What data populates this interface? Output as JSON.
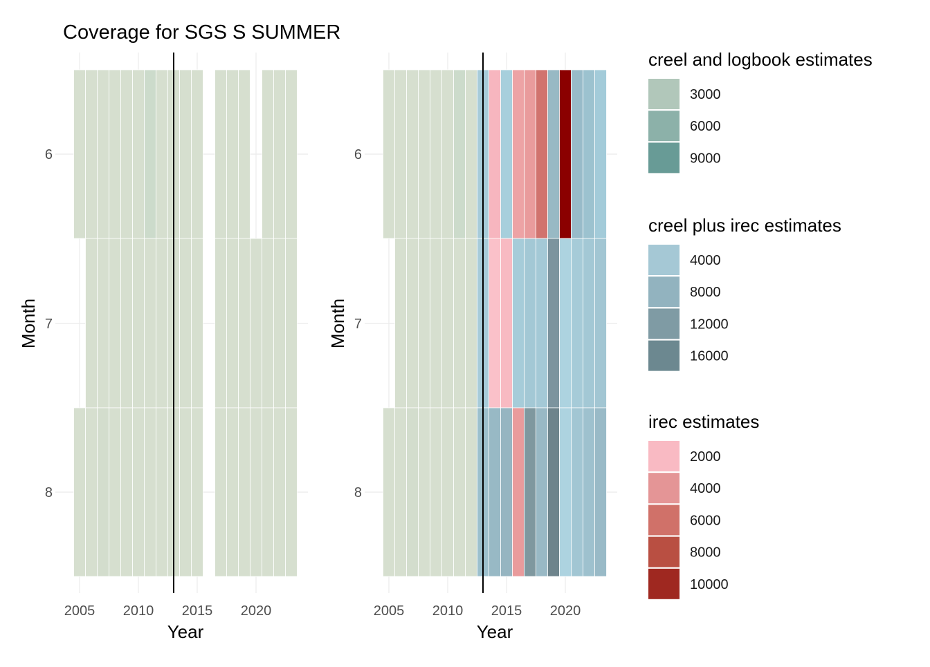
{
  "title": "Coverage for SGS S SUMMER",
  "colors": {
    "grid": "#ebebeb",
    "tile_border": "#ffffff",
    "vline": "#000000"
  },
  "chart_data": [
    {
      "type": "heatmap",
      "xlabel": "Year",
      "ylabel": "Month",
      "x_ticks": [
        2005,
        2010,
        2015,
        2020
      ],
      "y_ticks": [
        6,
        7,
        8
      ],
      "xlim": [
        2004.5,
        2023.5
      ],
      "vline": 2013,
      "tiles": [
        {
          "year": 2005,
          "month": 6,
          "color": "#d6dfcf"
        },
        {
          "year": 2006,
          "month": 6,
          "color": "#d6dfcf"
        },
        {
          "year": 2007,
          "month": 6,
          "color": "#d6dfcf"
        },
        {
          "year": 2008,
          "month": 6,
          "color": "#d6dfcf"
        },
        {
          "year": 2009,
          "month": 6,
          "color": "#d6dfcf"
        },
        {
          "year": 2010,
          "month": 6,
          "color": "#d6dfcf"
        },
        {
          "year": 2011,
          "month": 6,
          "color": "#ccdbcb"
        },
        {
          "year": 2012,
          "month": 6,
          "color": "#d6dfcf"
        },
        {
          "year": 2013,
          "month": 6,
          "color": "#d6dfcf"
        },
        {
          "year": 2014,
          "month": 6,
          "color": "#d6dfcf"
        },
        {
          "year": 2015,
          "month": 6,
          "color": "#d6dfcf"
        },
        {
          "year": 2017,
          "month": 6,
          "color": "#d6dfcf"
        },
        {
          "year": 2018,
          "month": 6,
          "color": "#d6dfcf"
        },
        {
          "year": 2019,
          "month": 6,
          "color": "#d6dfcf"
        },
        {
          "year": 2021,
          "month": 6,
          "color": "#d6dfcf"
        },
        {
          "year": 2022,
          "month": 6,
          "color": "#d6dfcf"
        },
        {
          "year": 2023,
          "month": 6,
          "color": "#d6dfcf"
        },
        {
          "year": 2006,
          "month": 7,
          "color": "#d6dfcf"
        },
        {
          "year": 2007,
          "month": 7,
          "color": "#d6dfcf"
        },
        {
          "year": 2008,
          "month": 7,
          "color": "#d6dfcf"
        },
        {
          "year": 2009,
          "month": 7,
          "color": "#d6dfcf"
        },
        {
          "year": 2010,
          "month": 7,
          "color": "#d6dfcf"
        },
        {
          "year": 2011,
          "month": 7,
          "color": "#d6dfcf"
        },
        {
          "year": 2012,
          "month": 7,
          "color": "#d6dfcf"
        },
        {
          "year": 2013,
          "month": 7,
          "color": "#d6dfcf"
        },
        {
          "year": 2014,
          "month": 7,
          "color": "#d6dfcf"
        },
        {
          "year": 2015,
          "month": 7,
          "color": "#d6dfcf"
        },
        {
          "year": 2017,
          "month": 7,
          "color": "#d6dfcf"
        },
        {
          "year": 2018,
          "month": 7,
          "color": "#d6dfcf"
        },
        {
          "year": 2019,
          "month": 7,
          "color": "#d6dfcf"
        },
        {
          "year": 2020,
          "month": 7,
          "color": "#d6dfcf"
        },
        {
          "year": 2021,
          "month": 7,
          "color": "#d6dfcf"
        },
        {
          "year": 2022,
          "month": 7,
          "color": "#d6dfcf"
        },
        {
          "year": 2023,
          "month": 7,
          "color": "#d6dfcf"
        },
        {
          "year": 2005,
          "month": 8,
          "color": "#d6dfcf"
        },
        {
          "year": 2006,
          "month": 8,
          "color": "#d6dfcf"
        },
        {
          "year": 2007,
          "month": 8,
          "color": "#d3ddcd"
        },
        {
          "year": 2008,
          "month": 8,
          "color": "#d6dfcf"
        },
        {
          "year": 2009,
          "month": 8,
          "color": "#d6dfcf"
        },
        {
          "year": 2010,
          "month": 8,
          "color": "#d6dfcf"
        },
        {
          "year": 2011,
          "month": 8,
          "color": "#d6dfcf"
        },
        {
          "year": 2012,
          "month": 8,
          "color": "#d6dfcf"
        },
        {
          "year": 2013,
          "month": 8,
          "color": "#d6dfcf"
        },
        {
          "year": 2014,
          "month": 8,
          "color": "#d6dfcf"
        },
        {
          "year": 2015,
          "month": 8,
          "color": "#d6dfcf"
        },
        {
          "year": 2017,
          "month": 8,
          "color": "#d6dfcf"
        },
        {
          "year": 2018,
          "month": 8,
          "color": "#d6dfcf"
        },
        {
          "year": 2019,
          "month": 8,
          "color": "#d6dfcf"
        },
        {
          "year": 2020,
          "month": 8,
          "color": "#d6dfcf"
        },
        {
          "year": 2021,
          "month": 8,
          "color": "#d6dfcf"
        },
        {
          "year": 2022,
          "month": 8,
          "color": "#d6dfcf"
        },
        {
          "year": 2023,
          "month": 8,
          "color": "#d6dfcf"
        }
      ]
    },
    {
      "type": "heatmap",
      "xlabel": "Year",
      "ylabel": "Month",
      "x_ticks": [
        2005,
        2010,
        2015,
        2020
      ],
      "y_ticks": [
        6,
        7,
        8
      ],
      "xlim": [
        2004.5,
        2023.5
      ],
      "vline": 2013,
      "tiles": [
        {
          "year": 2005,
          "month": 6,
          "color": "#d6dfcf"
        },
        {
          "year": 2006,
          "month": 6,
          "color": "#d6dfcf"
        },
        {
          "year": 2007,
          "month": 6,
          "color": "#d6dfcf"
        },
        {
          "year": 2008,
          "month": 6,
          "color": "#d6dfcf"
        },
        {
          "year": 2009,
          "month": 6,
          "color": "#d6dfcf"
        },
        {
          "year": 2010,
          "month": 6,
          "color": "#d6dfcf"
        },
        {
          "year": 2011,
          "month": 6,
          "color": "#ccdbcb"
        },
        {
          "year": 2012,
          "month": 6,
          "color": "#d6dfcf"
        },
        {
          "year": 2013,
          "month": 6,
          "color": "#a7cbd9"
        },
        {
          "year": 2014,
          "month": 6,
          "color": "#f7b6bf"
        },
        {
          "year": 2015,
          "month": 6,
          "color": "#a7cfdc"
        },
        {
          "year": 2016,
          "month": 6,
          "color": "#eda3a5"
        },
        {
          "year": 2017,
          "month": 6,
          "color": "#e99b9c"
        },
        {
          "year": 2018,
          "month": 6,
          "color": "#d1736e"
        },
        {
          "year": 2019,
          "month": 6,
          "color": "#98b9c4"
        },
        {
          "year": 2020,
          "month": 6,
          "color": "#8b0000"
        },
        {
          "year": 2021,
          "month": 6,
          "color": "#98bbc9"
        },
        {
          "year": 2022,
          "month": 6,
          "color": "#9cc2cf"
        },
        {
          "year": 2023,
          "month": 6,
          "color": "#a3cbd9"
        },
        {
          "year": 2006,
          "month": 7,
          "color": "#d6dfcf"
        },
        {
          "year": 2007,
          "month": 7,
          "color": "#d6dfcf"
        },
        {
          "year": 2008,
          "month": 7,
          "color": "#d6dfcf"
        },
        {
          "year": 2009,
          "month": 7,
          "color": "#d6dfcf"
        },
        {
          "year": 2010,
          "month": 7,
          "color": "#d6dfcf"
        },
        {
          "year": 2011,
          "month": 7,
          "color": "#d6dfcf"
        },
        {
          "year": 2012,
          "month": 7,
          "color": "#d6dfcf"
        },
        {
          "year": 2013,
          "month": 7,
          "color": "#a7cbd9"
        },
        {
          "year": 2014,
          "month": 7,
          "color": "#fac1c9"
        },
        {
          "year": 2015,
          "month": 7,
          "color": "#f8bac2"
        },
        {
          "year": 2016,
          "month": 7,
          "color": "#a6ccd9"
        },
        {
          "year": 2017,
          "month": 7,
          "color": "#a3c8d5"
        },
        {
          "year": 2018,
          "month": 7,
          "color": "#a4c9d6"
        },
        {
          "year": 2019,
          "month": 7,
          "color": "#7c949e"
        },
        {
          "year": 2020,
          "month": 7,
          "color": "#add3e0"
        },
        {
          "year": 2021,
          "month": 7,
          "color": "#a6cbd8"
        },
        {
          "year": 2022,
          "month": 7,
          "color": "#a3c8d5"
        },
        {
          "year": 2023,
          "month": 7,
          "color": "#a2c6d3"
        },
        {
          "year": 2005,
          "month": 8,
          "color": "#d6dfcf"
        },
        {
          "year": 2006,
          "month": 8,
          "color": "#d6dfcf"
        },
        {
          "year": 2007,
          "month": 8,
          "color": "#d3ddcd"
        },
        {
          "year": 2008,
          "month": 8,
          "color": "#d6dfcf"
        },
        {
          "year": 2009,
          "month": 8,
          "color": "#d6dfcf"
        },
        {
          "year": 2010,
          "month": 8,
          "color": "#d6dfcf"
        },
        {
          "year": 2011,
          "month": 8,
          "color": "#d6dfcf"
        },
        {
          "year": 2012,
          "month": 8,
          "color": "#d6dfcf"
        },
        {
          "year": 2013,
          "month": 8,
          "color": "#9cc0cd"
        },
        {
          "year": 2014,
          "month": 8,
          "color": "#98b9c5"
        },
        {
          "year": 2015,
          "month": 8,
          "color": "#96b5c1"
        },
        {
          "year": 2016,
          "month": 8,
          "color": "#e99b9c"
        },
        {
          "year": 2017,
          "month": 8,
          "color": "#7f989f"
        },
        {
          "year": 2018,
          "month": 8,
          "color": "#99b9c5"
        },
        {
          "year": 2019,
          "month": 8,
          "color": "#6e848c"
        },
        {
          "year": 2020,
          "month": 8,
          "color": "#add3e0"
        },
        {
          "year": 2021,
          "month": 8,
          "color": "#a2c6d3"
        },
        {
          "year": 2022,
          "month": 8,
          "color": "#9ec1ce"
        },
        {
          "year": 2023,
          "month": 8,
          "color": "#99bac7"
        }
      ]
    }
  ],
  "legends": [
    {
      "title": "creel and logbook estimates",
      "items": [
        {
          "label": "3000",
          "color": "#b1c7ba"
        },
        {
          "label": "6000",
          "color": "#8cb1a9"
        },
        {
          "label": "9000",
          "color": "#689b96"
        }
      ]
    },
    {
      "title": "creel plus irec estimates",
      "items": [
        {
          "label": "4000",
          "color": "#a5c8d5"
        },
        {
          "label": "8000",
          "color": "#92b3bf"
        },
        {
          "label": "12000",
          "color": "#7f9ba4"
        },
        {
          "label": "16000",
          "color": "#6c8890"
        }
      ]
    },
    {
      "title": "irec estimates",
      "items": [
        {
          "label": "2000",
          "color": "#f9bac3"
        },
        {
          "label": "4000",
          "color": "#e49596"
        },
        {
          "label": "6000",
          "color": "#d07169"
        },
        {
          "label": "8000",
          "color": "#b94f42"
        },
        {
          "label": "10000",
          "color": "#9f2820"
        }
      ]
    }
  ]
}
